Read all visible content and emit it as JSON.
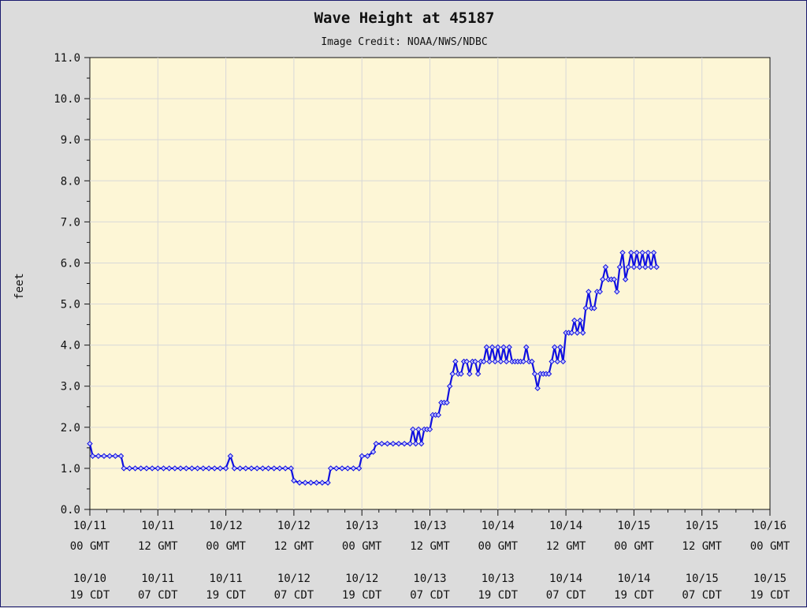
{
  "chart_data": {
    "type": "line",
    "title": "Wave Height at 45187",
    "subtitle": "Image Credit: NOAA/NWS/NDBC",
    "ylabel": "feet",
    "xlabel": "",
    "ylim": [
      0,
      11
    ],
    "y_ticks": [
      "0.0",
      "1.0",
      "2.0",
      "3.0",
      "4.0",
      "5.0",
      "6.0",
      "7.0",
      "8.0",
      "9.0",
      "10.0",
      "11.0"
    ],
    "x_range_hours": [
      0,
      120
    ],
    "grid": true,
    "x_ticks": [
      {
        "gmt_date": "10/11",
        "gmt_time": "00 GMT",
        "cdt_date": "10/10",
        "cdt_time": "19 CDT"
      },
      {
        "gmt_date": "10/11",
        "gmt_time": "12 GMT",
        "cdt_date": "10/11",
        "cdt_time": "07 CDT"
      },
      {
        "gmt_date": "10/12",
        "gmt_time": "00 GMT",
        "cdt_date": "10/11",
        "cdt_time": "19 CDT"
      },
      {
        "gmt_date": "10/12",
        "gmt_time": "12 GMT",
        "cdt_date": "10/12",
        "cdt_time": "07 CDT"
      },
      {
        "gmt_date": "10/13",
        "gmt_time": "00 GMT",
        "cdt_date": "10/12",
        "cdt_time": "19 CDT"
      },
      {
        "gmt_date": "10/13",
        "gmt_time": "12 GMT",
        "cdt_date": "10/13",
        "cdt_time": "07 CDT"
      },
      {
        "gmt_date": "10/14",
        "gmt_time": "00 GMT",
        "cdt_date": "10/13",
        "cdt_time": "19 CDT"
      },
      {
        "gmt_date": "10/14",
        "gmt_time": "12 GMT",
        "cdt_date": "10/14",
        "cdt_time": "07 CDT"
      },
      {
        "gmt_date": "10/15",
        "gmt_time": "00 GMT",
        "cdt_date": "10/14",
        "cdt_time": "19 CDT"
      },
      {
        "gmt_date": "10/15",
        "gmt_time": "12 GMT",
        "cdt_date": "10/15",
        "cdt_time": "07 CDT"
      },
      {
        "gmt_date": "10/16",
        "gmt_time": "00 GMT",
        "cdt_date": "10/15",
        "cdt_time": "19 CDT"
      }
    ],
    "series": [
      {
        "color": "#1010e0",
        "points": [
          [
            0,
            1.6
          ],
          [
            0.5,
            1.3
          ],
          [
            1.5,
            1.3
          ],
          [
            2.5,
            1.3
          ],
          [
            3.5,
            1.3
          ],
          [
            4.5,
            1.3
          ],
          [
            5.5,
            1.3
          ],
          [
            6,
            1.0
          ],
          [
            7,
            1.0
          ],
          [
            8,
            1.0
          ],
          [
            9,
            1.0
          ],
          [
            10,
            1.0
          ],
          [
            11,
            1.0
          ],
          [
            12,
            1.0
          ],
          [
            13,
            1.0
          ],
          [
            14,
            1.0
          ],
          [
            15,
            1.0
          ],
          [
            16,
            1.0
          ],
          [
            17,
            1.0
          ],
          [
            18,
            1.0
          ],
          [
            19,
            1.0
          ],
          [
            20,
            1.0
          ],
          [
            21,
            1.0
          ],
          [
            22,
            1.0
          ],
          [
            23,
            1.0
          ],
          [
            24,
            1.0
          ],
          [
            24.8,
            1.3
          ],
          [
            25.5,
            1.0
          ],
          [
            26.5,
            1.0
          ],
          [
            27.5,
            1.0
          ],
          [
            28.5,
            1.0
          ],
          [
            29.5,
            1.0
          ],
          [
            30.5,
            1.0
          ],
          [
            31.5,
            1.0
          ],
          [
            32.5,
            1.0
          ],
          [
            33.5,
            1.0
          ],
          [
            34.5,
            1.0
          ],
          [
            35.5,
            1.0
          ],
          [
            36,
            0.7
          ],
          [
            37,
            0.65
          ],
          [
            38,
            0.65
          ],
          [
            39,
            0.65
          ],
          [
            40,
            0.65
          ],
          [
            41,
            0.65
          ],
          [
            42,
            0.65
          ],
          [
            42.5,
            1.0
          ],
          [
            43.5,
            1.0
          ],
          [
            44.5,
            1.0
          ],
          [
            45.5,
            1.0
          ],
          [
            46.5,
            1.0
          ],
          [
            47.5,
            1.0
          ],
          [
            48,
            1.3
          ],
          [
            49,
            1.3
          ],
          [
            50,
            1.4
          ],
          [
            50.5,
            1.6
          ],
          [
            51.5,
            1.6
          ],
          [
            52.5,
            1.6
          ],
          [
            53.5,
            1.6
          ],
          [
            54.5,
            1.6
          ],
          [
            55.5,
            1.6
          ],
          [
            56.5,
            1.6
          ],
          [
            57,
            1.95
          ],
          [
            57.5,
            1.6
          ],
          [
            58,
            1.95
          ],
          [
            58.5,
            1.6
          ],
          [
            59,
            1.95
          ],
          [
            59.5,
            1.95
          ],
          [
            60,
            1.95
          ],
          [
            60.5,
            2.3
          ],
          [
            61,
            2.3
          ],
          [
            61.5,
            2.3
          ],
          [
            62,
            2.6
          ],
          [
            62.5,
            2.6
          ],
          [
            63,
            2.6
          ],
          [
            63.5,
            3.0
          ],
          [
            64,
            3.3
          ],
          [
            64.5,
            3.6
          ],
          [
            65,
            3.3
          ],
          [
            65.5,
            3.3
          ],
          [
            66,
            3.6
          ],
          [
            66.5,
            3.6
          ],
          [
            67,
            3.3
          ],
          [
            67.5,
            3.6
          ],
          [
            68,
            3.6
          ],
          [
            68.5,
            3.3
          ],
          [
            69,
            3.6
          ],
          [
            69.5,
            3.6
          ],
          [
            70,
            3.95
          ],
          [
            70.5,
            3.6
          ],
          [
            71,
            3.95
          ],
          [
            71.5,
            3.6
          ],
          [
            72,
            3.95
          ],
          [
            72.5,
            3.6
          ],
          [
            73,
            3.95
          ],
          [
            73.5,
            3.6
          ],
          [
            74,
            3.95
          ],
          [
            74.5,
            3.6
          ],
          [
            75,
            3.6
          ],
          [
            75.5,
            3.6
          ],
          [
            76,
            3.6
          ],
          [
            76.5,
            3.6
          ],
          [
            77,
            3.95
          ],
          [
            77.5,
            3.6
          ],
          [
            78,
            3.6
          ],
          [
            78.5,
            3.3
          ],
          [
            79,
            2.95
          ],
          [
            79.5,
            3.3
          ],
          [
            80,
            3.3
          ],
          [
            80.5,
            3.3
          ],
          [
            81,
            3.3
          ],
          [
            81.5,
            3.6
          ],
          [
            82,
            3.95
          ],
          [
            82.5,
            3.6
          ],
          [
            83,
            3.95
          ],
          [
            83.5,
            3.6
          ],
          [
            84,
            4.3
          ],
          [
            84.5,
            4.3
          ],
          [
            85,
            4.3
          ],
          [
            85.5,
            4.6
          ],
          [
            86,
            4.3
          ],
          [
            86.5,
            4.6
          ],
          [
            87,
            4.3
          ],
          [
            87.5,
            4.9
          ],
          [
            88,
            5.3
          ],
          [
            88.5,
            4.9
          ],
          [
            89,
            4.9
          ],
          [
            89.5,
            5.3
          ],
          [
            90,
            5.3
          ],
          [
            90.5,
            5.6
          ],
          [
            91,
            5.9
          ],
          [
            91.5,
            5.6
          ],
          [
            92,
            5.6
          ],
          [
            92.5,
            5.6
          ],
          [
            93,
            5.3
          ],
          [
            93.5,
            5.9
          ],
          [
            94,
            6.25
          ],
          [
            94.5,
            5.6
          ],
          [
            95,
            5.9
          ],
          [
            95.5,
            6.25
          ],
          [
            96,
            5.9
          ],
          [
            96.5,
            6.25
          ],
          [
            97,
            5.9
          ],
          [
            97.5,
            6.25
          ],
          [
            98,
            5.9
          ],
          [
            98.5,
            6.25
          ],
          [
            99,
            5.9
          ],
          [
            99.5,
            6.25
          ],
          [
            100,
            5.9
          ]
        ]
      }
    ]
  }
}
